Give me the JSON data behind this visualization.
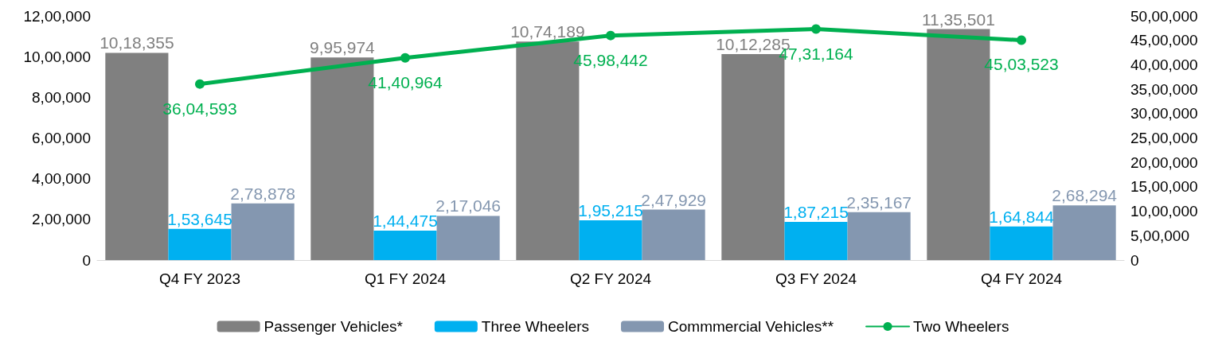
{
  "chart_data": {
    "type": "bar",
    "categories": [
      "Q4 FY 2023",
      "Q1 FY 2024",
      "Q2 FY 2024",
      "Q3 FY 2024",
      "Q4 FY 2024"
    ],
    "series": [
      {
        "name": "Passenger Vehicles*",
        "color": "#808080",
        "values": [
          1018355,
          995974,
          1074189,
          1012285,
          1135501
        ],
        "value_labels": [
          "10,18,355",
          "9,95,974",
          "10,74,189",
          "10,12,285",
          "11,35,501"
        ]
      },
      {
        "name": "Three Wheelers",
        "color": "#00b0f0",
        "values": [
          153645,
          144475,
          195215,
          187215,
          164844
        ],
        "value_labels": [
          "1,53,645",
          "1,44,475",
          "1,95,215",
          "1,87,215",
          "1,64,844"
        ]
      },
      {
        "name": "Commmercial Vehicles**",
        "color": "#8497b0",
        "values": [
          278878,
          217046,
          247929,
          235167,
          268294
        ],
        "value_labels": [
          "2,78,878",
          "2,17,046",
          "2,47,929",
          "2,35,167",
          "2,68,294"
        ]
      },
      {
        "name": "Two Wheelers",
        "type": "line",
        "axis": "y2",
        "color": "#00b050",
        "values": [
          3604593,
          4140964,
          4598442,
          4731164,
          4503523
        ],
        "value_labels": [
          "36,04,593",
          "41,40,964",
          "45,98,442",
          "47,31,164",
          "45,03,523"
        ]
      }
    ],
    "ylim": [
      0,
      1200000
    ],
    "yticks": [
      0,
      {
        "value": 200000,
        "label": "2,00,000"
      },
      {
        "value": 400000,
        "label": "4,00,000"
      },
      {
        "value": 600000,
        "label": "6,00,000"
      },
      {
        "value": 800000,
        "label": "8,00,000"
      },
      {
        "value": 1000000,
        "label": "10,00,000"
      },
      {
        "value": 1200000,
        "label": "12,00,000"
      }
    ],
    "y2lim": [
      0,
      5000000
    ],
    "y2ticks": [
      0,
      {
        "value": 500000,
        "label": "5,00,000"
      },
      {
        "value": 1000000,
        "label": "10,00,000"
      },
      {
        "value": 1500000,
        "label": "15,00,000"
      },
      {
        "value": 2000000,
        "label": "20,00,000"
      },
      {
        "value": 2500000,
        "label": "25,00,000"
      },
      {
        "value": 3000000,
        "label": "30,00,000"
      },
      {
        "value": 3500000,
        "label": "35,00,000"
      },
      {
        "value": 4000000,
        "label": "40,00,000"
      },
      {
        "value": 4500000,
        "label": "45,00,000"
      },
      {
        "value": 5000000,
        "label": "50,00,000"
      }
    ],
    "legend": "bottom",
    "grid": false,
    "marker": "circle"
  }
}
